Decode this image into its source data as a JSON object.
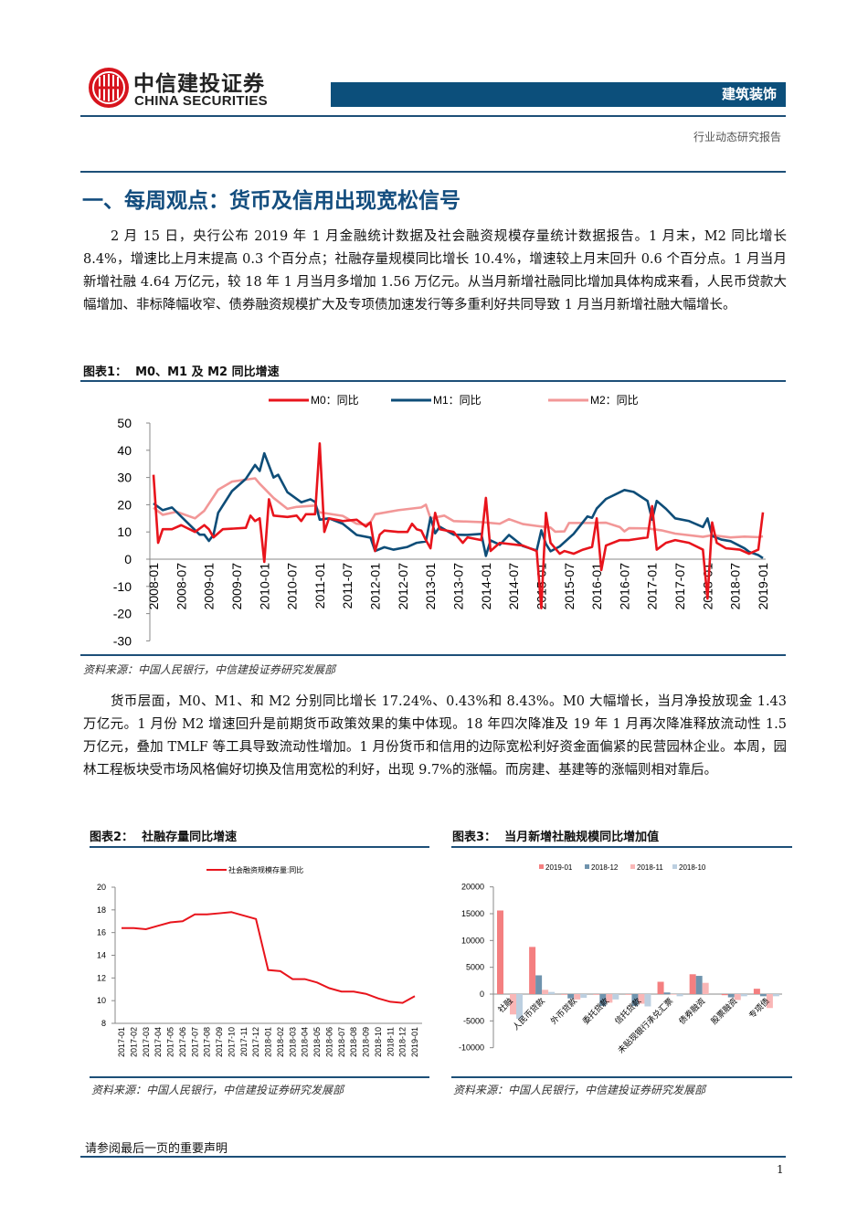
{
  "header": {
    "company_cn": "中信建投证券",
    "company_en": "CHINA SECURITIES",
    "sector": "建筑装饰",
    "report_type": "行业动态研究报告"
  },
  "section_title": "一、每周观点：货币及信用出现宽松信号",
  "paragraphs": [
    "2 月 15 日，央行公布 2019 年 1 月金融统计数据及社会融资规模存量统计数据报告。1 月末，M2 同比增长 8.4%，增速比上月末提高 0.3 个百分点；社融存量规模同比增长 10.4%，增速较上月末回升 0.6 个百分点。1 月当月新增社融 4.64 万亿元，较 18 年 1 月当月多增加 1.56 万亿元。从当月新增社融同比增加具体构成来看，人民币贷款大幅增加、非标降幅收窄、债券融资规模扩大及专项债加速发行等多重利好共同导致 1 月当月新增社融大幅增长。",
    "货币层面，M0、M1、和 M2 分别同比增长 17.24%、0.43%和 8.43%。M0 大幅增长，当月净投放现金 1.43 万亿元。1 月份 M2 增速回升是前期货币政策效果的集中体现。18 年四次降准及 19 年 1 月再次降准释放流动性 1.5 万亿元，叠加 TMLF 等工具导致流动性增加。1 月份货币和信用的边际宽松利好资金面偏紧的民营园林企业。本周，园林工程板块受市场风格偏好切换及信用宽松的利好，出现 9.7%的涨幅。而房建、基建等的涨幅则相对靠后。"
  ],
  "figures": {
    "fig1": {
      "label": "图表1：",
      "title": "M0、M1 及 M2 同比增速",
      "source": "资料来源：中国人民银行，中信建投证券研究发展部"
    },
    "fig2": {
      "label": "图表2：",
      "title": "社融存量同比增速",
      "source": "资料来源：中国人民银行，中信建投证券研究发展部"
    },
    "fig3": {
      "label": "图表3：",
      "title": "当月新增社融规模同比增加值",
      "source": "资料来源：中国人民银行，中信建投证券研究发展部"
    }
  },
  "footer": {
    "disclaimer": "请参阅最后一页的重要声明",
    "page": "1"
  },
  "chart_data": [
    {
      "type": "line",
      "ylim": [
        -30,
        50
      ],
      "yticks": [
        -30,
        -20,
        -10,
        0,
        10,
        20,
        30,
        40,
        50
      ],
      "legend": "top",
      "grid": false,
      "xticks": [
        "2008-01",
        "2008-07",
        "2009-01",
        "2009-07",
        "2010-01",
        "2010-07",
        "2011-01",
        "2011-07",
        "2012-01",
        "2012-07",
        "2013-01",
        "2013-07",
        "2014-01",
        "2014-07",
        "2015-01",
        "2015-07",
        "2016-01",
        "2016-07",
        "2017-01",
        "2017-07",
        "2018-01",
        "2018-07",
        "2019-01"
      ],
      "series": [
        {
          "name": "M0：同比",
          "color": "#e8141c",
          "points": [
            [
              "2008-01",
              31
            ],
            [
              "2008-02",
              6
            ],
            [
              "2008-03",
              11
            ],
            [
              "2008-05",
              11
            ],
            [
              "2008-07",
              12.5
            ],
            [
              "2008-10",
              10
            ],
            [
              "2008-12",
              12.5
            ],
            [
              "2009-01",
              11
            ],
            [
              "2009-02",
              8
            ],
            [
              "2009-04",
              11
            ],
            [
              "2009-09",
              11.5
            ],
            [
              "2009-10",
              16
            ],
            [
              "2009-11",
              14
            ],
            [
              "2009-12",
              15
            ],
            [
              "2010-01",
              -1
            ],
            [
              "2010-02",
              22
            ],
            [
              "2010-03",
              16
            ],
            [
              "2010-06",
              15.5
            ],
            [
              "2010-08",
              16
            ],
            [
              "2010-09",
              14
            ],
            [
              "2010-10",
              16.5
            ],
            [
              "2010-12",
              16.5
            ],
            [
              "2011-01",
              42.5
            ],
            [
              "2011-02",
              10
            ],
            [
              "2011-03",
              15
            ],
            [
              "2011-06",
              14
            ],
            [
              "2011-09",
              14.5
            ],
            [
              "2011-11",
              12
            ],
            [
              "2011-12",
              13.5
            ],
            [
              "2012-01",
              3
            ],
            [
              "2012-02",
              9
            ],
            [
              "2012-03",
              10.5
            ],
            [
              "2012-06",
              10
            ],
            [
              "2012-08",
              10
            ],
            [
              "2012-09",
              13
            ],
            [
              "2012-10",
              11
            ],
            [
              "2012-11",
              10.5
            ],
            [
              "2012-12",
              7
            ],
            [
              "2013-01",
              4
            ],
            [
              "2013-02",
              17
            ],
            [
              "2013-03",
              11
            ],
            [
              "2013-06",
              10
            ],
            [
              "2013-08",
              6
            ],
            [
              "2013-09",
              8
            ],
            [
              "2013-12",
              7
            ],
            [
              "2014-01",
              22.5
            ],
            [
              "2014-02",
              3
            ],
            [
              "2014-04",
              6
            ],
            [
              "2014-09",
              5
            ],
            [
              "2014-12",
              3
            ],
            [
              "2015-01",
              -18
            ],
            [
              "2015-02",
              17
            ],
            [
              "2015-03",
              6
            ],
            [
              "2015-05",
              2
            ],
            [
              "2015-06",
              3
            ],
            [
              "2015-08",
              2
            ],
            [
              "2015-10",
              3.5
            ],
            [
              "2015-12",
              4.5
            ],
            [
              "2016-01",
              15
            ],
            [
              "2016-02",
              -4
            ],
            [
              "2016-03",
              5
            ],
            [
              "2016-06",
              7
            ],
            [
              "2016-08",
              7
            ],
            [
              "2016-10",
              7.5
            ],
            [
              "2016-12",
              8
            ],
            [
              "2017-01",
              19.5
            ],
            [
              "2017-02",
              3.5
            ],
            [
              "2017-04",
              6
            ],
            [
              "2017-06",
              7
            ],
            [
              "2017-09",
              6
            ],
            [
              "2017-12",
              3.5
            ],
            [
              "2018-01",
              -14.5
            ],
            [
              "2018-02",
              13.5
            ],
            [
              "2018-03",
              6
            ],
            [
              "2018-05",
              4
            ],
            [
              "2018-08",
              3.5
            ],
            [
              "2018-10",
              2
            ],
            [
              "2018-12",
              3.5
            ],
            [
              "2019-01",
              17.2
            ]
          ]
        },
        {
          "name": "M1：同比",
          "color": "#0e4d78",
          "points": [
            [
              "2008-01",
              20.5
            ],
            [
              "2008-03",
              18
            ],
            [
              "2008-05",
              19
            ],
            [
              "2008-08",
              14
            ],
            [
              "2008-11",
              9
            ],
            [
              "2008-12",
              9
            ],
            [
              "2009-01",
              6.7
            ],
            [
              "2009-02",
              9
            ],
            [
              "2009-03",
              17
            ],
            [
              "2009-06",
              25
            ],
            [
              "2009-09",
              29.5
            ],
            [
              "2009-11",
              34.6
            ],
            [
              "2009-12",
              32.4
            ],
            [
              "2010-01",
              38.9
            ],
            [
              "2010-03",
              30
            ],
            [
              "2010-04",
              31
            ],
            [
              "2010-06",
              24.6
            ],
            [
              "2010-09",
              20.9
            ],
            [
              "2010-11",
              22
            ],
            [
              "2010-12",
              21
            ],
            [
              "2011-01",
              14.5
            ],
            [
              "2011-03",
              15
            ],
            [
              "2011-06",
              13
            ],
            [
              "2011-09",
              8.9
            ],
            [
              "2011-12",
              7.9
            ],
            [
              "2012-01",
              3
            ],
            [
              "2012-03",
              4.4
            ],
            [
              "2012-05",
              3.5
            ],
            [
              "2012-08",
              4.5
            ],
            [
              "2012-10",
              6
            ],
            [
              "2012-12",
              6.5
            ],
            [
              "2013-01",
              15.3
            ],
            [
              "2013-02",
              9.5
            ],
            [
              "2013-03",
              11.9
            ],
            [
              "2013-06",
              9
            ],
            [
              "2013-09",
              8.9
            ],
            [
              "2013-12",
              9.3
            ],
            [
              "2014-01",
              1.2
            ],
            [
              "2014-02",
              6.9
            ],
            [
              "2014-04",
              5.3
            ],
            [
              "2014-06",
              8.9
            ],
            [
              "2014-09",
              4.8
            ],
            [
              "2014-12",
              3.2
            ],
            [
              "2015-01",
              10.6
            ],
            [
              "2015-02",
              5.6
            ],
            [
              "2015-03",
              2.9
            ],
            [
              "2015-05",
              4.7
            ],
            [
              "2015-08",
              9.3
            ],
            [
              "2015-11",
              15.7
            ],
            [
              "2015-12",
              15.2
            ],
            [
              "2016-01",
              18.6
            ],
            [
              "2016-03",
              22.1
            ],
            [
              "2016-07",
              25.4
            ],
            [
              "2016-09",
              24.7
            ],
            [
              "2016-12",
              21.4
            ],
            [
              "2017-01",
              14.5
            ],
            [
              "2017-02",
              21.4
            ],
            [
              "2017-04",
              18.5
            ],
            [
              "2017-06",
              15
            ],
            [
              "2017-09",
              14
            ],
            [
              "2017-12",
              11.8
            ],
            [
              "2018-01",
              15
            ],
            [
              "2018-02",
              8.5
            ],
            [
              "2018-04",
              7.2
            ],
            [
              "2018-06",
              6.6
            ],
            [
              "2018-09",
              4
            ],
            [
              "2018-10",
              2.7
            ],
            [
              "2018-12",
              1.5
            ],
            [
              "2019-01",
              0.4
            ]
          ]
        },
        {
          "name": "M2：同比",
          "color": "#f29797",
          "points": [
            [
              "2008-01",
              18.9
            ],
            [
              "2008-03",
              16.3
            ],
            [
              "2008-06",
              17.4
            ],
            [
              "2008-10",
              15
            ],
            [
              "2008-12",
              17.8
            ],
            [
              "2009-03",
              25.5
            ],
            [
              "2009-06",
              28.5
            ],
            [
              "2009-11",
              29.7
            ],
            [
              "2009-12",
              27.7
            ],
            [
              "2010-01",
              26
            ],
            [
              "2010-03",
              22.5
            ],
            [
              "2010-06",
              18.5
            ],
            [
              "2010-08",
              19.2
            ],
            [
              "2010-12",
              19.7
            ],
            [
              "2011-01",
              17.2
            ],
            [
              "2011-06",
              15.9
            ],
            [
              "2011-09",
              13
            ],
            [
              "2011-11",
              12.7
            ],
            [
              "2011-12",
              13.6
            ],
            [
              "2012-01",
              16.5
            ],
            [
              "2012-06",
              18
            ],
            [
              "2012-11",
              19
            ],
            [
              "2012-12",
              20
            ],
            [
              "2013-01",
              15
            ],
            [
              "2013-04",
              16
            ],
            [
              "2013-06",
              14
            ],
            [
              "2013-12",
              13.6
            ],
            [
              "2014-04",
              13
            ],
            [
              "2014-06",
              14.7
            ],
            [
              "2014-09",
              12.9
            ],
            [
              "2014-12",
              12.2
            ],
            [
              "2015-03",
              11.6
            ],
            [
              "2015-04",
              10.1
            ],
            [
              "2015-06",
              10.2
            ],
            [
              "2015-07",
              13.3
            ],
            [
              "2015-12",
              13.3
            ],
            [
              "2016-03",
              13.4
            ],
            [
              "2016-06",
              11.8
            ],
            [
              "2016-07",
              10.2
            ],
            [
              "2016-08",
              11.4
            ],
            [
              "2016-12",
              11.3
            ],
            [
              "2017-03",
              10.6
            ],
            [
              "2017-06",
              9.4
            ],
            [
              "2017-12",
              8.2
            ],
            [
              "2018-02",
              8.8
            ],
            [
              "2018-06",
              8
            ],
            [
              "2018-09",
              8.3
            ],
            [
              "2018-12",
              8.1
            ],
            [
              "2019-01",
              8.4
            ]
          ]
        }
      ]
    },
    {
      "type": "line",
      "ylim": [
        8,
        20
      ],
      "yticks": [
        8,
        10,
        12,
        14,
        16,
        18,
        20
      ],
      "legend": "top",
      "grid": false,
      "categories": [
        "2017-01",
        "2017-02",
        "2017-03",
        "2017-04",
        "2017-05",
        "2017-06",
        "2017-07",
        "2017-08",
        "2017-09",
        "2017-10",
        "2017-11",
        "2017-12",
        "2018-01",
        "2018-02",
        "2018-03",
        "2018-04",
        "2018-05",
        "2018-06",
        "2018-07",
        "2018-08",
        "2018-09",
        "2018-10",
        "2018-11",
        "2018-12",
        "2019-01"
      ],
      "series": [
        {
          "name": "社会融资规模存量:同比",
          "color": "#e8141c",
          "values": [
            16.4,
            16.4,
            16.3,
            16.6,
            16.9,
            17.0,
            17.6,
            17.6,
            17.7,
            17.8,
            17.5,
            17.2,
            12.7,
            12.6,
            11.9,
            11.9,
            11.6,
            11.1,
            10.8,
            10.8,
            10.6,
            10.2,
            9.9,
            9.8,
            10.4
          ]
        }
      ]
    },
    {
      "type": "bar",
      "ylim": [
        -10000,
        20000
      ],
      "yticks": [
        -10000,
        -5000,
        0,
        5000,
        10000,
        15000,
        20000
      ],
      "legend": "top",
      "grid": false,
      "categories": [
        "社融",
        "人民币贷款",
        "外币贷款",
        "委托贷款",
        "信托贷款",
        "未贴现银行承兑汇票",
        "债券融资",
        "股票融资",
        "专项债"
      ],
      "series": [
        {
          "name": "2019-01",
          "color": "#f47f80",
          "values": [
            15600,
            8800,
            -100,
            -100,
            -100,
            2300,
            3700,
            -200,
            1000
          ]
        },
        {
          "name": "2018-12",
          "color": "#6f93ad",
          "values": [
            0,
            3500,
            -800,
            -2200,
            -2200,
            300,
            3400,
            -600,
            -400
          ]
        },
        {
          "name": "2018-11",
          "color": "#f9b6b6",
          "values": [
            -3800,
            800,
            -1000,
            -1600,
            -1800,
            -100,
            2100,
            -1100,
            -2600
          ]
        },
        {
          "name": "2018-10",
          "color": "#bccfe0",
          "values": [
            -4600,
            400,
            -700,
            -1000,
            -2300,
            -400,
            0,
            -400,
            -400
          ]
        }
      ]
    }
  ]
}
